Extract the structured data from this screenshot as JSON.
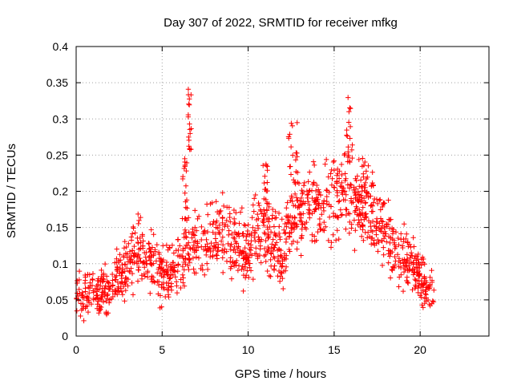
{
  "chart_data": {
    "type": "scatter",
    "title": "Day 307 of 2022, SRMTID for receiver mfkg",
    "xlabel": "GPS time / hours",
    "ylabel": "SRMTID / TECUs",
    "xlim": [
      0,
      24
    ],
    "ylim": [
      0,
      0.4
    ],
    "xticks": [
      0,
      5,
      10,
      15,
      20
    ],
    "xtick_labels": [
      "0",
      "5",
      "10",
      "15",
      "20"
    ],
    "yticks": [
      0,
      0.05,
      0.1,
      0.15,
      0.2,
      0.25,
      0.3,
      0.35,
      0.4
    ],
    "ytick_labels": [
      "0",
      "0.05",
      "0.1",
      "0.15",
      "0.2",
      "0.25",
      "0.3",
      "0.35",
      "0.4"
    ],
    "grid": true,
    "marker": "+",
    "series": [
      {
        "name": "SRMTID",
        "color": "#ff0000",
        "trend": [
          [
            0,
            0.05
          ],
          [
            0.5,
            0.055
          ],
          [
            1,
            0.065
          ],
          [
            1.5,
            0.06
          ],
          [
            2,
            0.065
          ],
          [
            2.5,
            0.075
          ],
          [
            3,
            0.1
          ],
          [
            3.5,
            0.13
          ],
          [
            4,
            0.1
          ],
          [
            4.5,
            0.1
          ],
          [
            5,
            0.085
          ],
          [
            5.5,
            0.08
          ],
          [
            6,
            0.1
          ],
          [
            6.5,
            0.12
          ],
          [
            7,
            0.12
          ],
          [
            7.5,
            0.13
          ],
          [
            8,
            0.14
          ],
          [
            8.5,
            0.14
          ],
          [
            9,
            0.13
          ],
          [
            9.5,
            0.12
          ],
          [
            10,
            0.12
          ],
          [
            10.5,
            0.14
          ],
          [
            11,
            0.16
          ],
          [
            11.5,
            0.13
          ],
          [
            12,
            0.11
          ],
          [
            12.5,
            0.16
          ],
          [
            13,
            0.17
          ],
          [
            13.5,
            0.18
          ],
          [
            14,
            0.19
          ],
          [
            14.5,
            0.18
          ],
          [
            15,
            0.19
          ],
          [
            15.5,
            0.2
          ],
          [
            16,
            0.19
          ],
          [
            16.5,
            0.18
          ],
          [
            17,
            0.17
          ],
          [
            17.5,
            0.16
          ],
          [
            18,
            0.14
          ],
          [
            18.5,
            0.12
          ],
          [
            19,
            0.11
          ],
          [
            19.5,
            0.1
          ],
          [
            20,
            0.08
          ],
          [
            20.5,
            0.06
          ],
          [
            20.8,
            0.05
          ]
        ],
        "spikes": [
          [
            6.6,
            0.345,
            0.2
          ],
          [
            6.3,
            0.25,
            0.3
          ],
          [
            12.6,
            0.3,
            0.5
          ],
          [
            15.9,
            0.33,
            0.4
          ],
          [
            16.8,
            0.25,
            0.4
          ],
          [
            11,
            0.24,
            0.3
          ]
        ]
      }
    ]
  }
}
